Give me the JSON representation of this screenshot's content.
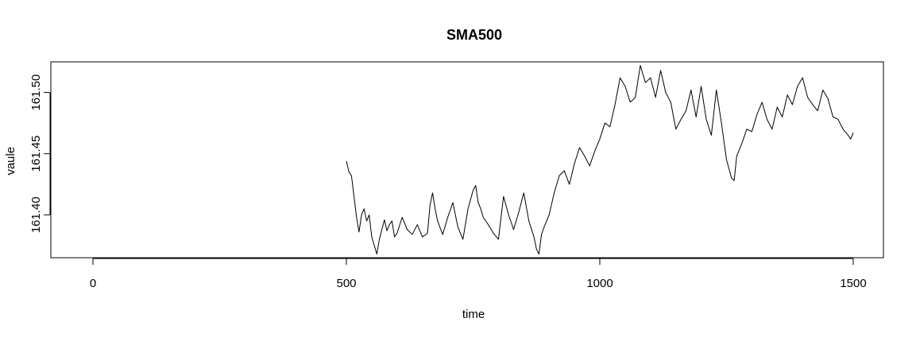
{
  "chart_data": {
    "type": "line",
    "title": "SMA500",
    "xlabel": "time",
    "ylabel": "vaule",
    "xlim": [
      0,
      1500
    ],
    "ylim": [
      161.365,
      161.525
    ],
    "x_ticks": [
      0,
      500,
      1000,
      1500
    ],
    "x_tick_labels": [
      "0",
      "500",
      "1000",
      "1500"
    ],
    "y_ticks": [
      161.4,
      161.45,
      161.5
    ],
    "y_tick_labels": [
      "161.40",
      "161.45",
      "161.50"
    ],
    "grid": false,
    "series": [
      {
        "x": [
          500,
          505,
          510,
          515,
          520,
          525,
          530,
          535,
          540,
          545,
          550,
          555,
          560,
          565,
          570,
          575,
          580,
          585,
          590,
          595,
          600,
          610,
          620,
          630,
          640,
          650,
          660,
          665,
          670,
          675,
          680,
          690,
          700,
          710,
          720,
          730,
          740,
          750,
          755,
          760,
          765,
          770,
          780,
          790,
          800,
          810,
          820,
          830,
          840,
          850,
          860,
          870,
          875,
          880,
          885,
          890,
          900,
          910,
          920,
          930,
          940,
          950,
          960,
          970,
          980,
          990,
          1000,
          1010,
          1020,
          1030,
          1040,
          1050,
          1060,
          1070,
          1080,
          1085,
          1090,
          1100,
          1110,
          1120,
          1130,
          1140,
          1150,
          1160,
          1170,
          1180,
          1190,
          1200,
          1210,
          1220,
          1230,
          1240,
          1250,
          1260,
          1265,
          1270,
          1280,
          1290,
          1300,
          1310,
          1320,
          1330,
          1340,
          1350,
          1360,
          1370,
          1380,
          1390,
          1400,
          1410,
          1420,
          1430,
          1440,
          1450,
          1460,
          1470,
          1480,
          1490,
          1495,
          1500
        ],
        "y": [
          161.444,
          161.435,
          161.432,
          161.415,
          161.398,
          161.386,
          161.4,
          161.405,
          161.395,
          161.4,
          161.382,
          161.375,
          161.368,
          161.38,
          161.388,
          161.396,
          161.387,
          161.392,
          161.395,
          161.382,
          161.385,
          161.398,
          161.388,
          161.384,
          161.392,
          161.382,
          161.385,
          161.408,
          161.418,
          161.405,
          161.395,
          161.384,
          161.398,
          161.41,
          161.39,
          161.38,
          161.405,
          161.42,
          161.424,
          161.41,
          161.405,
          161.398,
          161.392,
          161.385,
          161.38,
          161.415,
          161.4,
          161.388,
          161.402,
          161.418,
          161.395,
          161.382,
          161.372,
          161.368,
          161.384,
          161.39,
          161.4,
          161.418,
          161.432,
          161.436,
          161.425,
          161.442,
          161.455,
          161.448,
          161.44,
          161.452,
          161.462,
          161.475,
          161.472,
          161.49,
          161.512,
          161.505,
          161.492,
          161.496,
          161.522,
          161.515,
          161.508,
          161.512,
          161.496,
          161.518,
          161.5,
          161.492,
          161.47,
          161.478,
          161.485,
          161.502,
          161.48,
          161.505,
          161.478,
          161.465,
          161.502,
          161.475,
          161.445,
          161.43,
          161.428,
          161.448,
          161.458,
          161.47,
          161.468,
          161.482,
          161.492,
          161.478,
          161.47,
          161.488,
          161.48,
          161.498,
          161.49,
          161.505,
          161.512,
          161.496,
          161.49,
          161.485,
          161.502,
          161.495,
          161.48,
          161.478,
          161.47,
          161.465,
          161.462,
          161.467
        ]
      }
    ]
  }
}
